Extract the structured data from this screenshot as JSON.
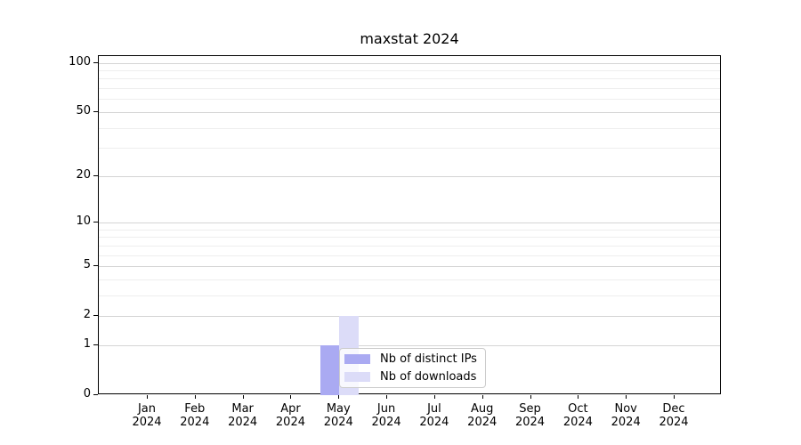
{
  "figure": {
    "title": "maxstat 2024"
  },
  "chart_data": {
    "type": "bar",
    "title": "maxstat 2024",
    "categories": [
      "Jan 2024",
      "Feb 2024",
      "Mar 2024",
      "Apr 2024",
      "May 2024",
      "Jun 2024",
      "Jul 2024",
      "Aug 2024",
      "Sep 2024",
      "Oct 2024",
      "Nov 2024",
      "Dec 2024"
    ],
    "series": [
      {
        "name": "Nb of distinct IPs",
        "color": "#aaaaf2",
        "values": [
          0,
          0,
          0,
          0,
          1,
          0,
          0,
          0,
          0,
          0,
          0,
          0
        ]
      },
      {
        "name": "Nb of downloads",
        "color": "#dcdcf8",
        "values": [
          0,
          0,
          0,
          0,
          2,
          0,
          0,
          0,
          0,
          0,
          0,
          0
        ]
      }
    ],
    "xlabel": "",
    "ylabel": "",
    "yscale": "log1p",
    "ylim": [
      0,
      110
    ],
    "yticks": [
      0,
      1,
      2,
      5,
      10,
      20,
      50,
      100
    ],
    "yminorticks": [
      3,
      4,
      6,
      7,
      8,
      9,
      30,
      40,
      60,
      70,
      80,
      90
    ],
    "grid": "horizontal",
    "legend": {
      "labels": [
        "Nb of distinct IPs",
        "Nb of downloads"
      ],
      "position": "lower-center"
    }
  },
  "colors": {
    "axis": "#000000",
    "grid_major": "#d4d4d4",
    "grid_minor": "#eeeeee",
    "legend_border": "#cccccc",
    "text": "#000000"
  }
}
